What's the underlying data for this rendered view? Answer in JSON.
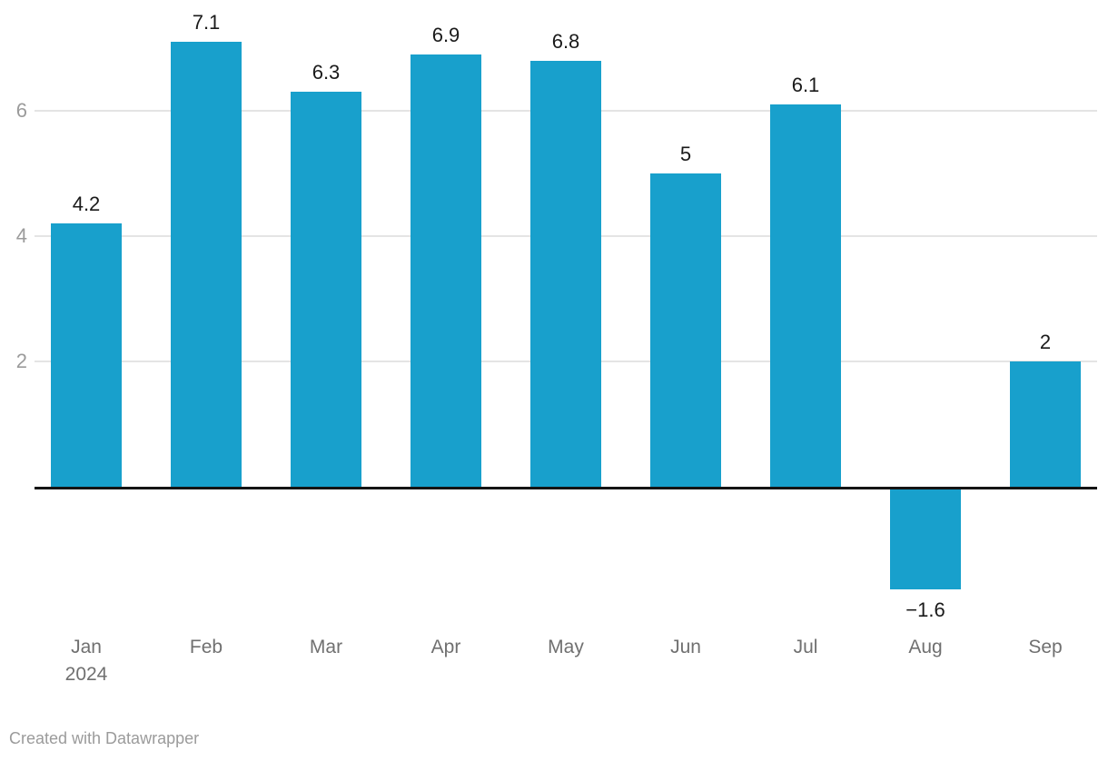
{
  "chart_data": {
    "type": "bar",
    "categories": [
      "Jan",
      "Feb",
      "Mar",
      "Apr",
      "May",
      "Jun",
      "Jul",
      "Aug",
      "Sep"
    ],
    "category_sublabels": [
      "2024",
      "",
      "",
      "",
      "",
      "",
      "",
      "",
      ""
    ],
    "values": [
      4.2,
      7.1,
      6.3,
      6.9,
      6.8,
      5,
      6.1,
      -1.6,
      2
    ],
    "value_labels": [
      "4.2",
      "7.1",
      "6.3",
      "6.9",
      "6.8",
      "5",
      "6.1",
      "−1.6",
      "2"
    ],
    "yticks": [
      2,
      4,
      6
    ],
    "ytick_labels": [
      "2",
      "4",
      "6"
    ],
    "ylim": [
      -1.8,
      7.4
    ],
    "grid": "on",
    "legend": "none",
    "title": "",
    "xlabel": "",
    "ylabel": "",
    "bar_color": "#18a0cc",
    "baseline_color": "#141414",
    "gridline_color": "#e4e4e4",
    "value_label_color": "#1a1a1a",
    "axis_label_color": "#707070",
    "tick_label_color": "#9b9b9b"
  },
  "footer": {
    "credit": "Created with Datawrapper"
  }
}
